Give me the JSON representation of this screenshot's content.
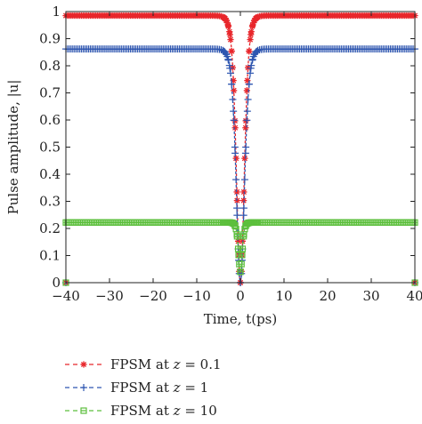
{
  "chart_data": {
    "type": "line",
    "title": "",
    "xlabel": "Time, t(ps)",
    "ylabel": "Pulse amplitude, |u|",
    "xlim": [
      -40,
      40
    ],
    "ylim": [
      0,
      1
    ],
    "xticks": [
      "−40",
      "−30",
      "−20",
      "−10",
      "0",
      "10",
      "20",
      "30",
      "40"
    ],
    "yticks": [
      "0",
      "0.1",
      "0.2",
      "0.3",
      "0.4",
      "0.5",
      "0.6",
      "0.7",
      "0.8",
      "0.9",
      "1"
    ],
    "grid": false,
    "legend_position": "below",
    "series": [
      {
        "name": "FPSM at z = 0.1",
        "label_prefix": "FPSM at ",
        "label_var": "z",
        "label_suffix": " = 0.1",
        "color": "#e8262b",
        "marker": "asterisk",
        "baseline": 0.985,
        "dip_min": 0.0,
        "dip_width": 1.2
      },
      {
        "name": "FPSM at z = 1",
        "label_prefix": "FPSM at ",
        "label_var": "z",
        "label_suffix": " = 1",
        "color": "#2e56b0",
        "marker": "plus",
        "baseline": 0.862,
        "dip_min": 0.0,
        "dip_width": 1.25
      },
      {
        "name": "FPSM at z = 10",
        "label_prefix": "FPSM at ",
        "label_var": "z",
        "label_suffix": " = 10",
        "color": "#5cbf3c",
        "marker": "square",
        "baseline": 0.222,
        "dip_min": 0.04,
        "dip_width": 0.6
      }
    ]
  }
}
